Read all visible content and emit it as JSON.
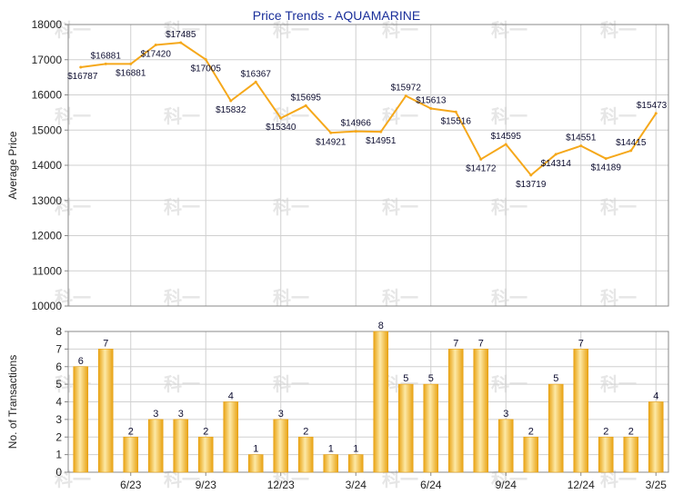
{
  "title": "Price Trends - AQUAMARINE",
  "colors": {
    "line": "#f5a81b",
    "bar_light": "#fde9a6",
    "bar_dark": "#e8a213",
    "grid": "#d0d0d0",
    "axis": "#888888",
    "title": "#1a2f9a",
    "label": "#0d0d30",
    "watermark": "#e6e6e6"
  },
  "watermark_text": "科一",
  "chart_data": [
    {
      "type": "line",
      "title": "Price Trends - AQUAMARINE",
      "ylabel": "Average Price",
      "ylim": [
        10000,
        18000
      ],
      "yticks": [
        "10000",
        "11000",
        "12000",
        "13000",
        "14000",
        "15000",
        "16000",
        "17000",
        "18000"
      ],
      "values": [
        16787,
        16881,
        16881,
        17420,
        17485,
        17005,
        15832,
        16367,
        15340,
        15695,
        14921,
        14966,
        14951,
        15972,
        15613,
        15516,
        14172,
        14595,
        13719,
        14314,
        14551,
        14189,
        14415,
        15473
      ],
      "labels": [
        "$16787",
        "$16881",
        "$16881",
        "$17420",
        "$17485",
        "$17005",
        "$15832",
        "$16367",
        "$15340",
        "$15695",
        "$14921",
        "$14966",
        "$14951",
        "$15972",
        "$15613",
        "$15516",
        "$14172",
        "$14595",
        "$13719",
        "$14314",
        "$14551",
        "$14189",
        "$14415",
        "$15473"
      ],
      "grid": true
    },
    {
      "type": "bar",
      "ylabel": "No. of Transactions",
      "ylim": [
        0,
        8
      ],
      "yticks": [
        "0",
        "1",
        "2",
        "3",
        "4",
        "5",
        "6",
        "7",
        "8"
      ],
      "values": [
        6,
        7,
        2,
        3,
        3,
        2,
        4,
        1,
        3,
        2,
        1,
        1,
        8,
        5,
        5,
        7,
        7,
        3,
        2,
        5,
        7,
        2,
        2,
        4
      ],
      "xtick_labels": [
        {
          "index": 2,
          "label": "6/23"
        },
        {
          "index": 5,
          "label": "9/23"
        },
        {
          "index": 8,
          "label": "12/23"
        },
        {
          "index": 11,
          "label": "3/24"
        },
        {
          "index": 14,
          "label": "6/24"
        },
        {
          "index": 17,
          "label": "9/24"
        },
        {
          "index": 20,
          "label": "12/24"
        },
        {
          "index": 23,
          "label": "3/25"
        }
      ],
      "grid": true
    }
  ]
}
